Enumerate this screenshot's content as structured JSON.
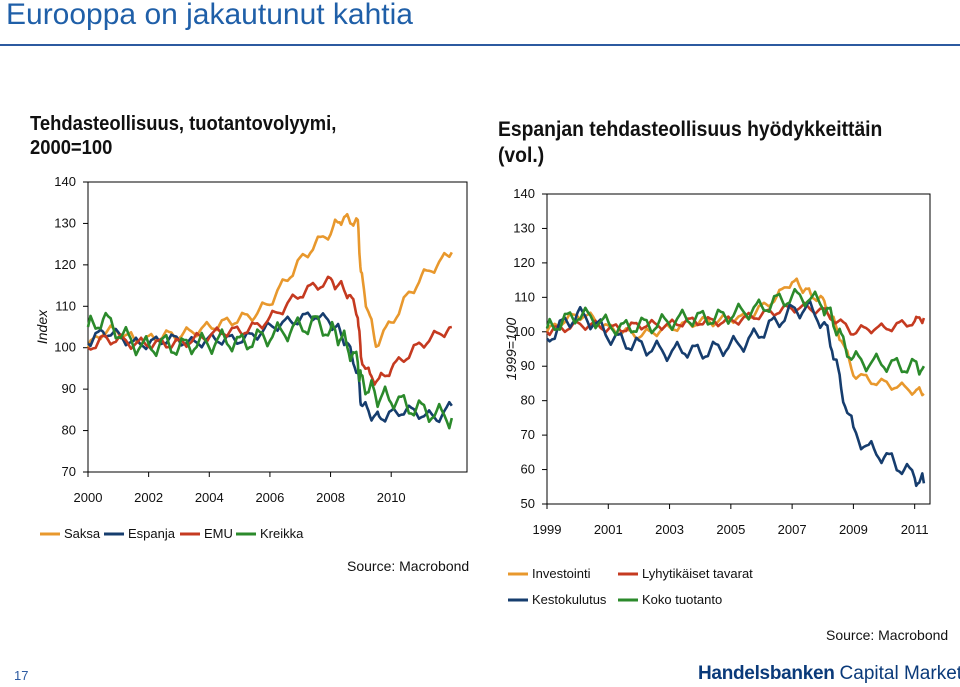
{
  "slide": {
    "title": "Eurooppa on jakautunut kahtia",
    "page_number": "17",
    "logo_primary": "Handelsbanken",
    "logo_secondary": "Capital Markets",
    "accent_color": "#1f5fa8"
  },
  "chart_data": [
    {
      "type": "line",
      "title": "Tehdasteollisuus, tuotantovolyymi,",
      "subtitle": "2000=100",
      "ylabel": "Index",
      "xlabel": "",
      "ylim": [
        70,
        140
      ],
      "xlim": [
        2000,
        2012.5
      ],
      "yticks": [
        "70",
        "80",
        "90",
        "100",
        "110",
        "120",
        "130",
        "140"
      ],
      "xticks": [
        "2000",
        "2002",
        "2004",
        "2006",
        "2008",
        "2010"
      ],
      "grid": false,
      "legend_position": "bottom",
      "source": "Source: Macrobond",
      "series": [
        {
          "name": "Saksa",
          "color": "#e8982d",
          "x": [
            2000,
            2000.5,
            2001,
            2001.5,
            2002,
            2002.5,
            2003,
            2003.5,
            2004,
            2004.5,
            2005,
            2005.5,
            2006,
            2006.5,
            2007,
            2007.5,
            2008,
            2008.3,
            2008.6,
            2008.9,
            2009,
            2009.2,
            2009.5,
            2010,
            2010.5,
            2011,
            2011.5,
            2012
          ],
          "y": [
            100,
            104,
            104,
            102,
            102,
            103,
            103,
            104,
            105,
            106,
            107,
            108,
            111,
            116,
            121,
            125,
            128,
            131,
            131,
            130,
            118,
            110,
            101,
            106,
            112,
            117,
            120,
            123
          ]
        },
        {
          "name": "Espanja",
          "color": "#163d6e",
          "x": [
            2000,
            2000.5,
            2001,
            2001.5,
            2002,
            2002.5,
            2003,
            2003.5,
            2004,
            2004.5,
            2005,
            2005.5,
            2006,
            2006.5,
            2007,
            2007.5,
            2008,
            2008.3,
            2008.6,
            2008.9,
            2009,
            2009.3,
            2009.6,
            2010,
            2010.5,
            2011,
            2011.5,
            2012
          ],
          "y": [
            101,
            104,
            103,
            101,
            101,
            102,
            102,
            101,
            102,
            102,
            102,
            103,
            105,
            106,
            107,
            108,
            106,
            104,
            100,
            94,
            87,
            84,
            83,
            84,
            85,
            84,
            83,
            86
          ]
        },
        {
          "name": "EMU",
          "color": "#c53a20",
          "x": [
            2000,
            2000.5,
            2001,
            2001.5,
            2002,
            2002.5,
            2003,
            2003.5,
            2004,
            2004.5,
            2005,
            2005.5,
            2006,
            2006.5,
            2007,
            2007.5,
            2008,
            2008.3,
            2008.6,
            2008.9,
            2009,
            2009.3,
            2009.6,
            2010,
            2010.5,
            2011,
            2011.5,
            2012
          ],
          "y": [
            100,
            102,
            102,
            101,
            101,
            101,
            101,
            102,
            103,
            104,
            104,
            105,
            107,
            110,
            113,
            115,
            116,
            115,
            113,
            108,
            98,
            93,
            92,
            95,
            98,
            101,
            103,
            105
          ]
        },
        {
          "name": "Kreikka",
          "color": "#2b8a2b",
          "x": [
            2000,
            2000.5,
            2001,
            2001.5,
            2002,
            2002.5,
            2003,
            2003.5,
            2004,
            2004.5,
            2005,
            2005.5,
            2006,
            2006.5,
            2007,
            2007.5,
            2008,
            2008.3,
            2008.6,
            2008.9,
            2009,
            2009.3,
            2009.6,
            2010,
            2010.5,
            2011,
            2011.5,
            2012
          ],
          "y": [
            105,
            107,
            104,
            101,
            100,
            101,
            100,
            101,
            101,
            102,
            101,
            102,
            103,
            104,
            105,
            106,
            104,
            103,
            100,
            96,
            92,
            90,
            88,
            88,
            86,
            85,
            84,
            83
          ]
        }
      ]
    },
    {
      "type": "line",
      "title": "Espanjan tehdasteollisuus hyödykkeittäin",
      "subtitle": "(vol.)",
      "ylabel": "1999=100",
      "xlabel": "",
      "ylim": [
        50,
        140
      ],
      "xlim": [
        1999,
        2011.5
      ],
      "yticks": [
        "50",
        "60",
        "70",
        "80",
        "90",
        "100",
        "110",
        "120",
        "130",
        "140"
      ],
      "xticks": [
        "1999",
        "2001",
        "2003",
        "2005",
        "2007",
        "2009",
        "2011"
      ],
      "grid": false,
      "legend_position": "bottom",
      "source": "Source: Macrobond",
      "series": [
        {
          "name": "Investointi",
          "color": "#e8982d",
          "x": [
            1999,
            1999.5,
            2000,
            2000.5,
            2001,
            2001.5,
            2002,
            2002.5,
            2003,
            2003.5,
            2004,
            2004.5,
            2005,
            2005.5,
            2006,
            2006.5,
            2007,
            2007.3,
            2007.6,
            2008,
            2008.3,
            2008.6,
            2009,
            2009.5,
            2010,
            2010.5,
            2011,
            2011.3
          ],
          "y": [
            100,
            103,
            105,
            104,
            101,
            100,
            99,
            100,
            101,
            102,
            103,
            103,
            104,
            104,
            107,
            110,
            115,
            113,
            111,
            109,
            104,
            98,
            88,
            86,
            85,
            84,
            83,
            82
          ]
        },
        {
          "name": "Lyhytikäiset tavarat",
          "color": "#c53a20",
          "x": [
            1999,
            1999.5,
            2000,
            2000.5,
            2001,
            2001.5,
            2002,
            2002.5,
            2003,
            2003.5,
            2004,
            2004.5,
            2005,
            2005.5,
            2006,
            2006.5,
            2007,
            2007.5,
            2008,
            2008.5,
            2009,
            2009.5,
            2010,
            2010.5,
            2011,
            2011.3
          ],
          "y": [
            100,
            101,
            102,
            102,
            101,
            101,
            102,
            102,
            102,
            103,
            103,
            103,
            103,
            104,
            105,
            106,
            107,
            107,
            106,
            103,
            100,
            101,
            101,
            102,
            103,
            104
          ]
        },
        {
          "name": "Kestokulutus",
          "color": "#163d6e",
          "x": [
            1999,
            1999.5,
            2000,
            2000.5,
            2001,
            2001.5,
            2002,
            2002.5,
            2003,
            2003.5,
            2004,
            2004.5,
            2005,
            2005.5,
            2006,
            2006.5,
            2007,
            2007.5,
            2008,
            2008.3,
            2008.6,
            2009,
            2009.5,
            2010,
            2010.5,
            2011,
            2011.3
          ],
          "y": [
            98,
            102,
            105,
            103,
            99,
            97,
            96,
            95,
            94,
            95,
            94,
            95,
            96,
            97,
            100,
            103,
            106,
            107,
            103,
            96,
            84,
            71,
            66,
            64,
            61,
            58,
            56
          ]
        },
        {
          "name": "Koko tuotanto",
          "color": "#2b8a2b",
          "x": [
            1999,
            1999.5,
            2000,
            2000.5,
            2001,
            2001.5,
            2002,
            2002.5,
            2003,
            2003.5,
            2004,
            2004.5,
            2005,
            2005.5,
            2006,
            2006.5,
            2007,
            2007.5,
            2008,
            2008.3,
            2008.6,
            2009,
            2009.5,
            2010,
            2010.5,
            2011,
            2011.3
          ],
          "y": [
            101,
            103,
            105,
            104,
            102,
            101,
            102,
            102,
            103,
            104,
            104,
            104,
            105,
            106,
            107,
            109,
            110,
            110,
            108,
            104,
            98,
            92,
            91,
            91,
            90,
            90,
            90
          ]
        }
      ]
    }
  ]
}
